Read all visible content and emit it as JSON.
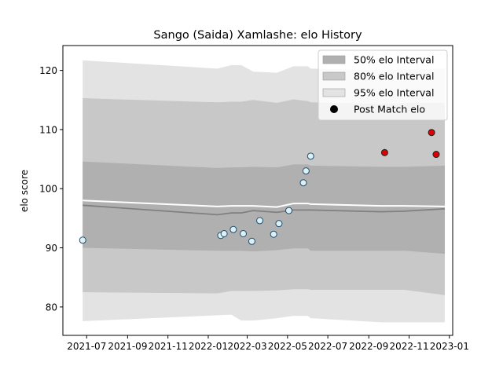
{
  "chart_data": {
    "type": "area",
    "title": "Sango (Saida) Xamlashe: elo History",
    "xlabel": "",
    "ylabel": "elo score",
    "xlim": [
      "2021-05-26",
      "2023-01-06"
    ],
    "ylim": [
      75.2,
      124.2
    ],
    "x_ticks": [
      "2021-07-01",
      "2021-09-01",
      "2021-11-01",
      "2022-01-01",
      "2022-03-01",
      "2022-05-01",
      "2022-07-01",
      "2022-09-01",
      "2022-11-01",
      "2023-01-01"
    ],
    "x_tick_labels": [
      "2021-07",
      "2021-09",
      "2021-11",
      "2022-01",
      "2022-03",
      "2022-05",
      "2022-07",
      "2022-09",
      "2022-11",
      "2023-01"
    ],
    "y_ticks": [
      80,
      90,
      100,
      110,
      120
    ],
    "y_tick_labels": [
      "80",
      "90",
      "100",
      "110",
      "120"
    ],
    "grid": false,
    "legend_position": "top-right",
    "legend": [
      {
        "label": "50% elo Interval",
        "swatch": "band50"
      },
      {
        "label": "80% elo Interval",
        "swatch": "band80"
      },
      {
        "label": "95% elo Interval",
        "swatch": "band95"
      },
      {
        "label": "Post Match elo",
        "swatch": "marker"
      }
    ],
    "colors": {
      "band50": "#b0b0b0",
      "band80": "#c8c8c8",
      "band95": "#e3e3e3",
      "median": "#808080",
      "white_line": "#ffffff",
      "point_fill": "#ddf0f6",
      "point_edge": "#1f4e6e",
      "recent_fill": "#dd0000",
      "recent_edge": "#222222"
    },
    "band_x": [
      "2021-06-25",
      "2022-01-15",
      "2022-02-05",
      "2022-02-20",
      "2022-03-10",
      "2022-04-15",
      "2022-05-10",
      "2022-06-01",
      "2022-06-05",
      "2022-09-20",
      "2022-10-25",
      "2022-12-25"
    ],
    "band95_upper": [
      121.7,
      120.3,
      120.9,
      120.9,
      119.8,
      119.6,
      120.7,
      120.7,
      120.3,
      120.0,
      120.2,
      120.3
    ],
    "band80_upper": [
      115.3,
      114.6,
      114.7,
      114.7,
      115.0,
      114.5,
      115.1,
      114.8,
      114.6,
      114.3,
      114.5,
      114.5
    ],
    "band50_upper": [
      104.6,
      103.5,
      103.6,
      103.6,
      103.7,
      103.6,
      104.1,
      104.1,
      103.9,
      103.7,
      103.7,
      103.9
    ],
    "median": [
      97.2,
      95.6,
      95.9,
      95.9,
      96.3,
      96.0,
      96.4,
      96.4,
      96.4,
      96.1,
      96.2,
      96.6
    ],
    "white_line": [
      98.0,
      97.0,
      97.1,
      97.1,
      97.1,
      96.9,
      97.5,
      97.5,
      97.4,
      97.1,
      97.1,
      97.0
    ],
    "band50_lower": [
      90.0,
      89.5,
      89.5,
      89.5,
      89.4,
      89.6,
      89.9,
      89.9,
      89.5,
      89.5,
      89.5,
      89.0
    ],
    "band80_lower": [
      82.5,
      82.3,
      82.7,
      82.7,
      82.7,
      82.8,
      83.0,
      83.0,
      82.9,
      82.9,
      82.9,
      82.0
    ],
    "band95_lower": [
      77.6,
      78.6,
      78.7,
      77.7,
      77.7,
      78.1,
      78.5,
      78.5,
      78.1,
      77.4,
      77.4,
      77.4
    ],
    "points": [
      {
        "x": "2021-06-25",
        "y": 91.3,
        "recent": false
      },
      {
        "x": "2022-01-20",
        "y": 92.1,
        "recent": false
      },
      {
        "x": "2022-01-25",
        "y": 92.4,
        "recent": false
      },
      {
        "x": "2022-02-08",
        "y": 93.1,
        "recent": false
      },
      {
        "x": "2022-02-23",
        "y": 92.4,
        "recent": false
      },
      {
        "x": "2022-03-08",
        "y": 91.1,
        "recent": false
      },
      {
        "x": "2022-03-20",
        "y": 94.6,
        "recent": false
      },
      {
        "x": "2022-04-10",
        "y": 92.3,
        "recent": false
      },
      {
        "x": "2022-04-18",
        "y": 94.1,
        "recent": false
      },
      {
        "x": "2022-05-03",
        "y": 96.3,
        "recent": false
      },
      {
        "x": "2022-05-25",
        "y": 101.0,
        "recent": false
      },
      {
        "x": "2022-05-29",
        "y": 103.0,
        "recent": false
      },
      {
        "x": "2022-06-05",
        "y": 105.5,
        "recent": false
      },
      {
        "x": "2022-09-25",
        "y": 106.1,
        "recent": true
      },
      {
        "x": "2022-12-05",
        "y": 109.5,
        "recent": true
      },
      {
        "x": "2022-12-12",
        "y": 105.8,
        "recent": true
      }
    ]
  }
}
